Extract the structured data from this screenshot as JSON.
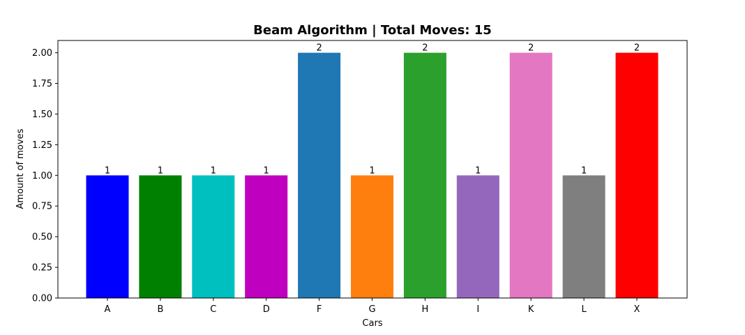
{
  "chart_data": {
    "type": "bar",
    "title": "Beam Algorithm | Total Moves: 15",
    "xlabel": "Cars",
    "ylabel": "Amount of moves",
    "categories": [
      "A",
      "B",
      "C",
      "D",
      "F",
      "G",
      "H",
      "I",
      "K",
      "L",
      "X"
    ],
    "values": [
      1,
      1,
      1,
      1,
      2,
      1,
      2,
      1,
      2,
      1,
      2
    ],
    "data_labels": [
      "1",
      "1",
      "1",
      "1",
      "2",
      "1",
      "2",
      "1",
      "2",
      "1",
      "2"
    ],
    "colors": [
      "#0000ff",
      "#008000",
      "#00bfbf",
      "#bf00bf",
      "#1f77b4",
      "#ff7f0e",
      "#2ca02c",
      "#9467bd",
      "#e377c2",
      "#7f7f7f",
      "#ff0000"
    ],
    "ylim": [
      0,
      2.1
    ],
    "yticks": [
      "0.00",
      "0.25",
      "0.50",
      "0.75",
      "1.00",
      "1.25",
      "1.50",
      "1.75",
      "2.00"
    ],
    "grid": false,
    "legend": "none"
  }
}
